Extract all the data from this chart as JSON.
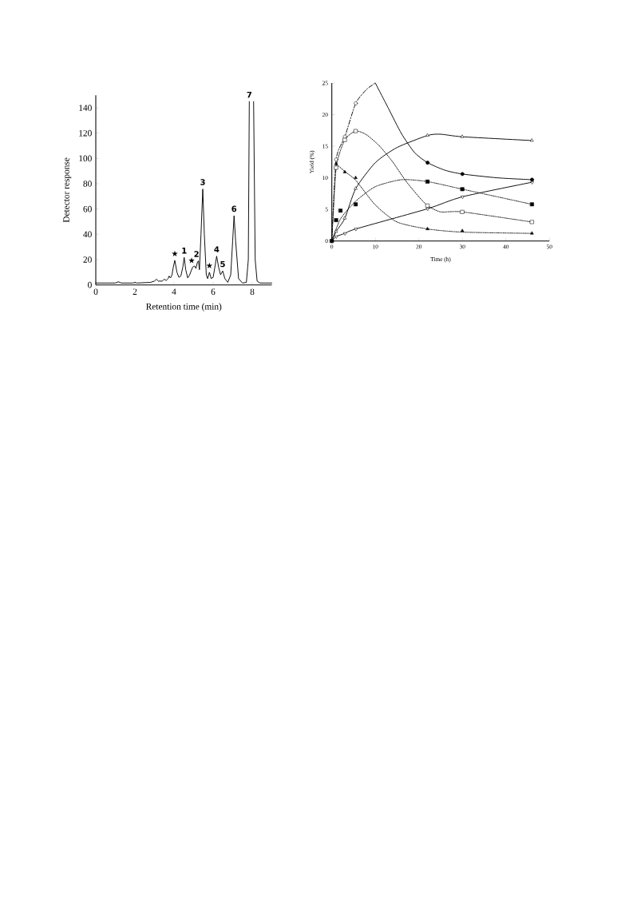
{
  "chart_data": [
    {
      "type": "line",
      "xlabel": "Retention time (min)",
      "ylabel": "Detector response",
      "xlim": [
        0,
        9
      ],
      "ylim": [
        0,
        150
      ],
      "xticks": [
        0,
        2,
        4,
        6,
        8
      ],
      "yticks": [
        0,
        20,
        40,
        60,
        80,
        100,
        120,
        140
      ],
      "color": "#000000",
      "x": [
        0,
        1.0,
        1.15,
        1.3,
        1.9,
        2.0,
        2.1,
        2.8,
        3.0,
        3.1,
        3.2,
        3.4,
        3.5,
        3.6,
        3.7,
        3.75,
        3.82,
        3.9,
        3.95,
        4.04,
        4.15,
        4.25,
        4.35,
        4.45,
        4.52,
        4.6,
        4.7,
        4.8,
        4.95,
        5.05,
        5.12,
        5.2,
        5.25,
        5.3,
        5.38,
        5.47,
        5.55,
        5.65,
        5.72,
        5.81,
        5.9,
        6.0,
        6.1,
        6.18,
        6.28,
        6.38,
        6.49,
        6.6,
        6.75,
        6.9,
        7.0,
        7.07,
        7.15,
        7.3,
        7.5,
        7.7,
        7.8,
        7.85,
        7.95,
        8.07,
        8.15,
        8.25,
        8.4,
        9.0
      ],
      "values": [
        1.5,
        1.5,
        2.5,
        1.5,
        1.5,
        2,
        1.5,
        2,
        3,
        4.5,
        3,
        3,
        4.5,
        3.5,
        5,
        7,
        5.5,
        8,
        13,
        19.4,
        10,
        6,
        7,
        14,
        21.7,
        12,
        5.5,
        8,
        14,
        15,
        13,
        18,
        19,
        12,
        40,
        75.8,
        40,
        8,
        5,
        10,
        5,
        6,
        15,
        22.7,
        14,
        8,
        11,
        5,
        2,
        8,
        35,
        54.7,
        35,
        5,
        1.5,
        2,
        20,
        145,
        null,
        145,
        20,
        3,
        1.5,
        1.5
      ],
      "annotations": [
        {
          "text": "★",
          "x": 4.04,
          "y": 19.4
        },
        {
          "text": "1",
          "x": 4.52,
          "y": 21.7
        },
        {
          "text": "★",
          "x": 4.9,
          "y": 14
        },
        {
          "text": "2",
          "x": 5.15,
          "y": 19
        },
        {
          "text": "3",
          "x": 5.47,
          "y": 75.8
        },
        {
          "text": "★",
          "x": 5.81,
          "y": 10
        },
        {
          "text": "4",
          "x": 6.18,
          "y": 22.7
        },
        {
          "text": "5",
          "x": 6.49,
          "y": 11
        },
        {
          "text": "6",
          "x": 7.07,
          "y": 54.7
        },
        {
          "text": "7",
          "x": 7.85,
          "y": 145
        }
      ]
    },
    {
      "type": "scatter",
      "xlabel": "Time (h)",
      "ylabel": "Yield (%)",
      "xlim": [
        0,
        50
      ],
      "ylim": [
        0,
        25
      ],
      "xticks": [
        0,
        10,
        20,
        30,
        40,
        50
      ],
      "yticks": [
        0,
        5,
        10,
        15,
        20,
        25
      ],
      "series": [
        {
          "type": "line",
          "line_style": "dashed",
          "color": "#000000",
          "x": [
            0,
            1,
            3,
            5.5,
            8,
            10
          ],
          "values": [
            0,
            12.9,
            16.5,
            21.8,
            24,
            25
          ]
        },
        {
          "type": "line",
          "line_style": "solid",
          "color": "#000000",
          "x": [
            10,
            13,
            16,
            19,
            22,
            26,
            30,
            38,
            46
          ],
          "values": [
            25,
            21,
            17,
            14,
            12.4,
            11.2,
            10.6,
            10.0,
            9.7
          ]
        },
        {
          "type": "line",
          "line_style": "solid",
          "color": "#000000",
          "x": [
            0,
            1,
            3,
            5.5,
            10,
            15,
            22,
            25,
            30,
            46
          ],
          "values": [
            0,
            1.5,
            3.6,
            8.3,
            12.4,
            14.8,
            16.7,
            16.9,
            16.5,
            15.9
          ]
        },
        {
          "type": "line",
          "line_style": "dotted",
          "color": "#000000",
          "x": [
            1,
            3,
            5.5,
            10,
            15,
            22,
            30,
            46
          ],
          "values": [
            12.2,
            11,
            9.6,
            5.7,
            3.0,
            1.9,
            1.4,
            1.2
          ]
        },
        {
          "type": "line",
          "line_style": "dotted",
          "color": "#000000",
          "x": [
            0,
            1,
            3,
            5.5,
            8,
            11,
            14,
            17,
            20,
            22,
            25,
            30,
            46
          ],
          "values": [
            0,
            11.6,
            16.0,
            17.4,
            16.8,
            15,
            12.5,
            9.5,
            7,
            5.6,
            4.6,
            4.6,
            3.0
          ]
        },
        {
          "type": "line",
          "line_style": "dotted",
          "color": "#000000",
          "x": [
            0,
            2,
            5.5,
            10,
            16,
            22,
            30,
            46
          ],
          "values": [
            0,
            3.5,
            6.3,
            8.6,
            9.7,
            9.4,
            8.2,
            5.8
          ]
        },
        {
          "type": "line",
          "line_style": "solid",
          "marker": "triangle-down",
          "color": "#000000",
          "x": [
            0,
            1,
            3,
            5.5,
            22,
            30,
            46
          ],
          "values": [
            0,
            0.7,
            1.2,
            1.9,
            5.1,
            7.0,
            9.3
          ]
        },
        {
          "marker": "circle",
          "color": "#ffffff",
          "x": [
            0,
            1,
            3,
            5.5
          ],
          "values": [
            0,
            12.9,
            16.5,
            21.8
          ]
        },
        {
          "marker": "circle",
          "color": "#000000",
          "x": [
            22,
            30,
            46
          ],
          "values": [
            12.4,
            10.6,
            9.7
          ]
        },
        {
          "marker": "triangle",
          "color": "#ffffff",
          "x": [
            1,
            3,
            5.5,
            22,
            30,
            46
          ],
          "values": [
            1.5,
            3.6,
            8.3,
            16.7,
            16.5,
            15.9
          ]
        },
        {
          "marker": "triangle",
          "color": "#000000",
          "x": [
            1,
            3,
            5.5,
            22,
            30,
            46
          ],
          "values": [
            12.2,
            10.9,
            10.0,
            1.9,
            1.6,
            1.2
          ]
        },
        {
          "marker": "square",
          "color": "#ffffff",
          "x": [
            1,
            3,
            5.5,
            22,
            30,
            46
          ],
          "values": [
            11.6,
            16.0,
            17.4,
            5.6,
            4.6,
            3.0
          ]
        },
        {
          "marker": "square",
          "color": "#000000",
          "x": [
            0,
            1,
            2,
            5.5,
            22,
            30,
            46
          ],
          "values": [
            0,
            3.3,
            4.8,
            5.8,
            9.4,
            8.2,
            5.8
          ]
        }
      ]
    }
  ]
}
